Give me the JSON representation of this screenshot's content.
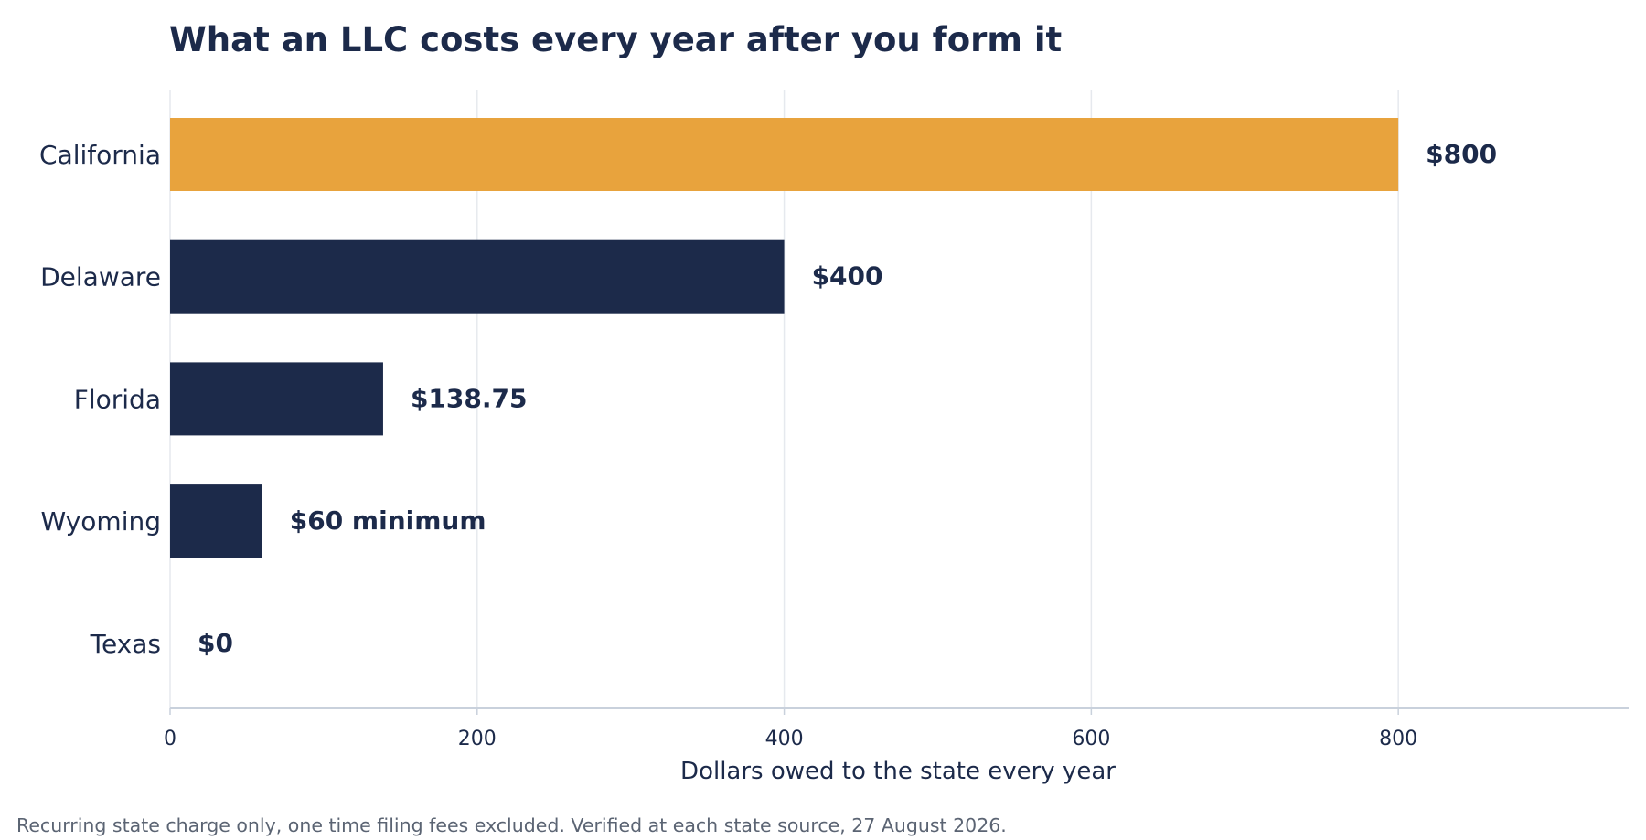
{
  "chart_data": {
    "type": "bar",
    "orientation": "horizontal",
    "title": "What an LLC costs every year after you form it",
    "categories": [
      "California",
      "Delaware",
      "Florida",
      "Wyoming",
      "Texas"
    ],
    "values": [
      800,
      400,
      138.75,
      60,
      0
    ],
    "data_labels": [
      "$800",
      "$400",
      "$138.75",
      "$60 minimum",
      "$0"
    ],
    "highlight_category": "California",
    "xlabel": "Dollars owed to the state every year",
    "ylabel": "",
    "xlim": [
      0,
      950
    ],
    "xticks": [
      0,
      200,
      400,
      600,
      800
    ],
    "grid": "vertical",
    "legend": "none"
  },
  "colors": {
    "highlight_bar": "#e8a33d",
    "default_bar": "#1c2a4a",
    "gridline": "#e6e9ee",
    "axis_line": "#c9d1dc",
    "text": "#1c2a4a",
    "footnote_text": "#5b6473"
  },
  "footnote": "Recurring state charge only, one time filing fees excluded. Verified at each state source, 27 August 2026."
}
